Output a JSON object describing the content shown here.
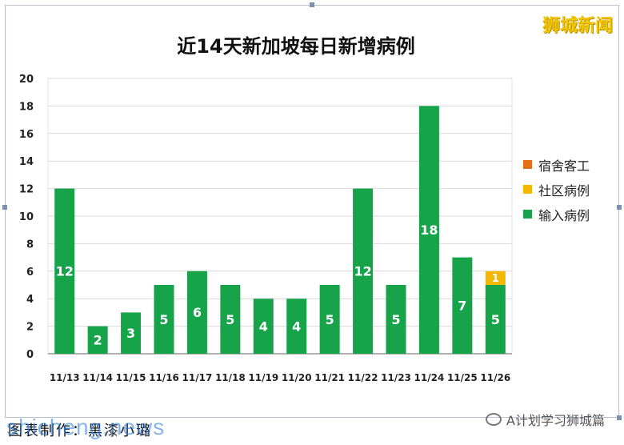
{
  "brand": "狮城新闻",
  "credit": "图表制作：黑漆小璐",
  "watermark": "shicheng.news",
  "footer_account": "A计划学习狮城篇",
  "colors": {
    "imported": "#16a34a",
    "community": "#f5b800",
    "dormitory": "#e46f16",
    "gridline": "#d9d9d9",
    "axis": "#666666"
  },
  "chart_data": {
    "type": "bar",
    "stacked": true,
    "title": "近14天新加坡每日新增病例",
    "categories": [
      "11/13",
      "11/14",
      "11/15",
      "11/16",
      "11/17",
      "11/18",
      "11/19",
      "11/20",
      "11/21",
      "11/22",
      "11/23",
      "11/24",
      "11/25",
      "11/26"
    ],
    "series": [
      {
        "name": "输入病例",
        "color": "#16a34a",
        "values": [
          12,
          2,
          3,
          5,
          6,
          5,
          4,
          4,
          5,
          12,
          5,
          18,
          7,
          5
        ]
      },
      {
        "name": "社区病例",
        "color": "#f5b800",
        "values": [
          0,
          0,
          0,
          0,
          0,
          0,
          0,
          0,
          0,
          0,
          0,
          0,
          0,
          1
        ]
      },
      {
        "name": "宿舍客工",
        "color": "#e46f16",
        "values": [
          0,
          0,
          0,
          0,
          0,
          0,
          0,
          0,
          0,
          0,
          0,
          0,
          0,
          0
        ]
      }
    ],
    "ylim": [
      0,
      20
    ],
    "yticks": [
      0,
      2,
      4,
      6,
      8,
      10,
      12,
      14,
      16,
      18,
      20
    ],
    "grid": true,
    "legend": "right",
    "legend_order": [
      "宿舍客工",
      "社区病例",
      "输入病例"
    ]
  }
}
